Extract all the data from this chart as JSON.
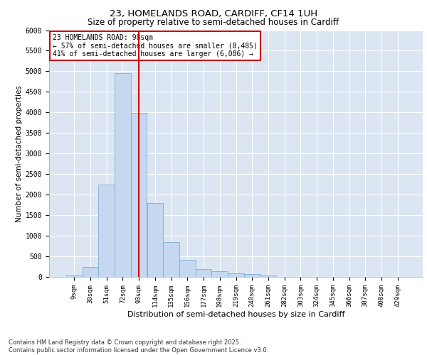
{
  "title_line1": "23, HOMELANDS ROAD, CARDIFF, CF14 1UH",
  "title_line2": "Size of property relative to semi-detached houses in Cardiff",
  "xlabel": "Distribution of semi-detached houses by size in Cardiff",
  "ylabel": "Number of semi-detached properties",
  "footer_line1": "Contains HM Land Registry data © Crown copyright and database right 2025.",
  "footer_line2": "Contains public sector information licensed under the Open Government Licence v3.0.",
  "categories": [
    "9sqm",
    "30sqm",
    "51sqm",
    "72sqm",
    "93sqm",
    "114sqm",
    "135sqm",
    "156sqm",
    "177sqm",
    "198sqm",
    "219sqm",
    "240sqm",
    "261sqm",
    "282sqm",
    "303sqm",
    "324sqm",
    "345sqm",
    "366sqm",
    "387sqm",
    "408sqm",
    "429sqm"
  ],
  "values": [
    30,
    250,
    2250,
    4950,
    3980,
    1790,
    850,
    420,
    190,
    130,
    80,
    70,
    40,
    0,
    0,
    0,
    0,
    0,
    0,
    0,
    0
  ],
  "bar_color": "#c5d8ef",
  "bar_edge_color": "#7aadd4",
  "vline_color": "#cc0000",
  "vline_index": 4.5,
  "annotation_title": "23 HOMELANDS ROAD: 98sqm",
  "annotation_line2": "← 57% of semi-detached houses are smaller (8,485)",
  "annotation_line3": "41% of semi-detached houses are larger (6,086) →",
  "annotation_box_color": "#cc0000",
  "ylim": [
    0,
    6000
  ],
  "yticks": [
    0,
    500,
    1000,
    1500,
    2000,
    2500,
    3000,
    3500,
    4000,
    4500,
    5000,
    5500,
    6000
  ],
  "plot_bg_color": "#dce6f2",
  "grid_color": "#ffffff",
  "title1_fontsize": 9.5,
  "title2_fontsize": 8.5,
  "xlabel_fontsize": 8,
  "ylabel_fontsize": 7.5,
  "tick_fontsize": 6.5,
  "annotation_fontsize": 7,
  "footer_fontsize": 6
}
